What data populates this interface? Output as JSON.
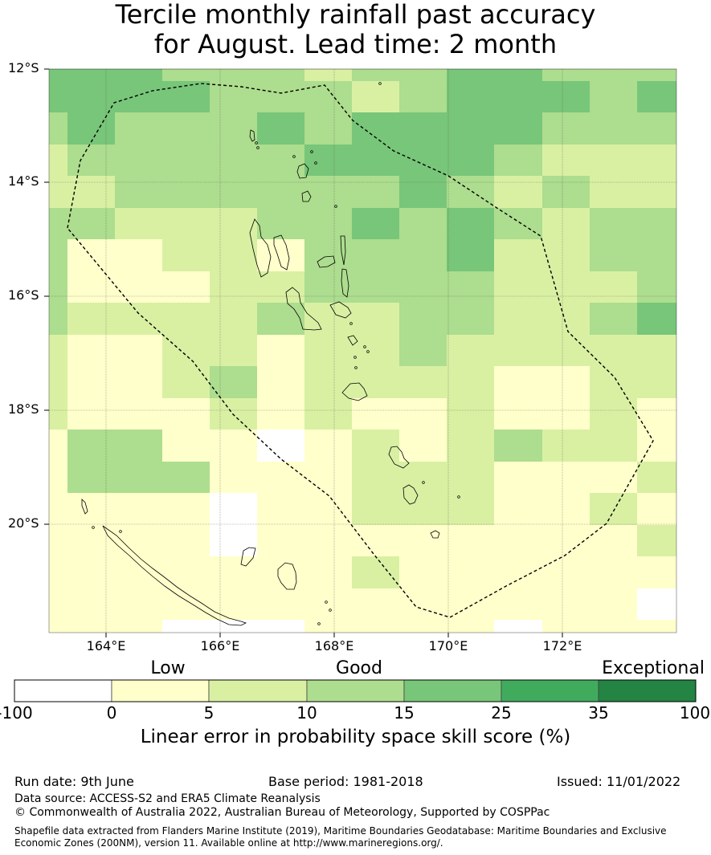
{
  "title": {
    "line1": "Tercile monthly rainfall past accuracy",
    "line2": "for August. Lead time: 2 month"
  },
  "map": {
    "lat_labels": [
      "12°S",
      "14°S",
      "16°S",
      "18°S",
      "20°S"
    ],
    "lon_labels": [
      "164°E",
      "166°E",
      "168°E",
      "170°E",
      "172°E"
    ],
    "extent": {
      "lon_min": 163,
      "lon_max": 174,
      "lat_top": -12,
      "lat_bottom": -21.9
    },
    "skill_colors": {
      "w": "#ffffff",
      "y": "#ffffcc",
      "l": "#d9f0a3",
      "m": "#addd8e",
      "g": "#78c679",
      "d": "#41ab5d",
      "k": "#238443"
    },
    "region_name": "Vanuatu EEZ"
  },
  "legend": {
    "category_labels": [
      "Low",
      "Good",
      "Exceptional"
    ],
    "tick_labels": [
      "-100",
      "0",
      "5",
      "10",
      "15",
      "25",
      "35",
      "100"
    ],
    "bin_colors": [
      "#ffffff",
      "#ffffcc",
      "#d9f0a3",
      "#addd8e",
      "#78c679",
      "#41ab5d",
      "#238443"
    ],
    "title": "Linear error in probability space skill score (%)"
  },
  "footer": {
    "run_date": "Run date: 9th June",
    "base_period": "Base period: 1981-2018",
    "issued": "Issued: 11/01/2022",
    "data_source": "Data source: ACCESS-S2 and ERA5 Climate Reanalysis",
    "copyright": "© Commonwealth of Australia 2022, Australian Bureau of Meteorology, Supported by COSPPac",
    "shapefile_line1": "Shapefile data extracted from Flanders Marine Institute (2019), Maritime Boundaries Geodatabase: Maritime Boundaries and Exclusive",
    "shapefile_line2": "Economic Zones (200NM), version 11. Available online at http://www.marineregions.org/."
  }
}
